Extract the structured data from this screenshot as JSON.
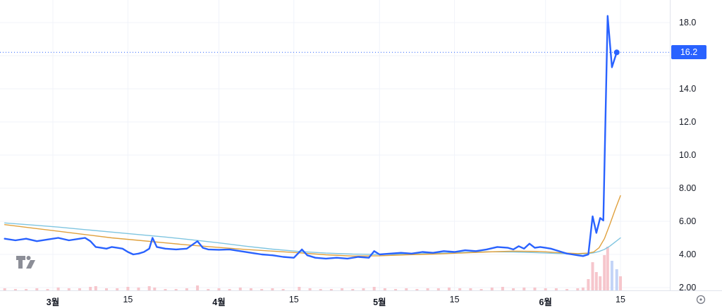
{
  "price_axis": {
    "last_price_label": "16.2"
  },
  "icons": {
    "tradingview_logo": "TV monogram watermark",
    "axis_settings": "circled-dot"
  },
  "chart_data": {
    "type": "line",
    "title": "",
    "xlabel": "",
    "ylabel": "",
    "ylim": [
      1.6,
      19.4
    ],
    "grid": {
      "on": true,
      "color": "#f0f3fa",
      "y_values": [
        18,
        16,
        14,
        12,
        10,
        8,
        6,
        4,
        2
      ]
    },
    "x_ticks": [
      {
        "label": "3월",
        "day": 9,
        "major": true
      },
      {
        "label": "15",
        "day": 23,
        "major": false
      },
      {
        "label": "4월",
        "day": 40,
        "major": true
      },
      {
        "label": "15",
        "day": 54,
        "major": false
      },
      {
        "label": "5월",
        "day": 70,
        "major": true
      },
      {
        "label": "15",
        "day": 84,
        "major": false
      },
      {
        "label": "6월",
        "day": 101,
        "major": true
      },
      {
        "label": "15",
        "day": 115,
        "major": false
      }
    ],
    "y_ticks": [
      {
        "label": "18.0",
        "value": 18
      },
      {
        "label": "14.0",
        "value": 14
      },
      {
        "label": "12.0",
        "value": 12
      },
      {
        "label": "10.0",
        "value": 10
      },
      {
        "label": "8.00",
        "value": 8
      },
      {
        "label": "6.00",
        "value": 6
      },
      {
        "label": "4.00",
        "value": 4
      },
      {
        "label": "2.00",
        "value": 2
      }
    ],
    "last_price": {
      "value": 16.2,
      "label": "16.2",
      "line_color": "#2962ff",
      "badge_color": "#2962ff"
    },
    "series": [
      {
        "name": "price",
        "color": "#2962ff",
        "width": 2.4,
        "points": [
          [
            0,
            4.95
          ],
          [
            2,
            4.85
          ],
          [
            4,
            4.95
          ],
          [
            6,
            4.8
          ],
          [
            8,
            4.9
          ],
          [
            10,
            5.0
          ],
          [
            12,
            4.85
          ],
          [
            14,
            4.95
          ],
          [
            15,
            5.0
          ],
          [
            16,
            4.8
          ],
          [
            17,
            4.45
          ],
          [
            18,
            4.4
          ],
          [
            19,
            4.35
          ],
          [
            20,
            4.45
          ],
          [
            21,
            4.4
          ],
          [
            22,
            4.35
          ],
          [
            23,
            4.15
          ],
          [
            24,
            4.0
          ],
          [
            25,
            4.05
          ],
          [
            26,
            4.15
          ],
          [
            27,
            4.35
          ],
          [
            27.6,
            5.0
          ],
          [
            28.4,
            4.45
          ],
          [
            30,
            4.35
          ],
          [
            32,
            4.3
          ],
          [
            34,
            4.35
          ],
          [
            36,
            4.8
          ],
          [
            37,
            4.4
          ],
          [
            38,
            4.3
          ],
          [
            40,
            4.28
          ],
          [
            42,
            4.3
          ],
          [
            44,
            4.2
          ],
          [
            46,
            4.1
          ],
          [
            48,
            4.0
          ],
          [
            50,
            3.95
          ],
          [
            52,
            3.85
          ],
          [
            54,
            3.8
          ],
          [
            55.5,
            4.3
          ],
          [
            56.5,
            3.95
          ],
          [
            58,
            3.8
          ],
          [
            60,
            3.75
          ],
          [
            62,
            3.8
          ],
          [
            64,
            3.75
          ],
          [
            66,
            3.85
          ],
          [
            68,
            3.8
          ],
          [
            69,
            4.2
          ],
          [
            70,
            4.0
          ],
          [
            72,
            4.05
          ],
          [
            74,
            4.1
          ],
          [
            76,
            4.05
          ],
          [
            78,
            4.15
          ],
          [
            80,
            4.1
          ],
          [
            82,
            4.2
          ],
          [
            84,
            4.15
          ],
          [
            86,
            4.25
          ],
          [
            88,
            4.2
          ],
          [
            90,
            4.3
          ],
          [
            92,
            4.45
          ],
          [
            94,
            4.4
          ],
          [
            95,
            4.3
          ],
          [
            96,
            4.5
          ],
          [
            97,
            4.35
          ],
          [
            98,
            4.65
          ],
          [
            99,
            4.4
          ],
          [
            100,
            4.45
          ],
          [
            101,
            4.4
          ],
          [
            102,
            4.35
          ],
          [
            103,
            4.25
          ],
          [
            104,
            4.15
          ],
          [
            105,
            4.05
          ],
          [
            106,
            4.0
          ],
          [
            107,
            3.95
          ],
          [
            108,
            3.9
          ],
          [
            109,
            4.0
          ],
          [
            109.8,
            6.3
          ],
          [
            110.5,
            5.3
          ],
          [
            111.2,
            6.2
          ],
          [
            111.8,
            6.05
          ],
          [
            112.6,
            18.4
          ],
          [
            113.4,
            15.3
          ],
          [
            114.3,
            16.2
          ]
        ]
      },
      {
        "name": "ma-fast",
        "color": "#e0a13e",
        "width": 1.4,
        "points": [
          [
            0,
            5.8
          ],
          [
            5,
            5.6
          ],
          [
            10,
            5.4
          ],
          [
            15,
            5.2
          ],
          [
            20,
            5.0
          ],
          [
            25,
            4.85
          ],
          [
            30,
            4.7
          ],
          [
            35,
            4.55
          ],
          [
            40,
            4.42
          ],
          [
            45,
            4.3
          ],
          [
            50,
            4.2
          ],
          [
            55,
            4.1
          ],
          [
            60,
            3.98
          ],
          [
            65,
            3.9
          ],
          [
            70,
            3.92
          ],
          [
            75,
            3.98
          ],
          [
            80,
            4.02
          ],
          [
            85,
            4.08
          ],
          [
            90,
            4.15
          ],
          [
            95,
            4.2
          ],
          [
            100,
            4.18
          ],
          [
            104,
            4.1
          ],
          [
            107,
            4.05
          ],
          [
            109,
            4.08
          ],
          [
            110,
            4.15
          ],
          [
            111,
            4.4
          ],
          [
            112,
            4.95
          ],
          [
            113,
            5.8
          ],
          [
            114,
            6.7
          ],
          [
            115,
            7.55
          ]
        ]
      },
      {
        "name": "ma-slow",
        "color": "#7fc5e0",
        "width": 1.4,
        "points": [
          [
            0,
            5.9
          ],
          [
            5,
            5.78
          ],
          [
            10,
            5.65
          ],
          [
            15,
            5.5
          ],
          [
            20,
            5.35
          ],
          [
            25,
            5.2
          ],
          [
            30,
            5.05
          ],
          [
            35,
            4.88
          ],
          [
            40,
            4.7
          ],
          [
            45,
            4.5
          ],
          [
            50,
            4.32
          ],
          [
            55,
            4.18
          ],
          [
            60,
            4.08
          ],
          [
            65,
            4.02
          ],
          [
            70,
            4.0
          ],
          [
            75,
            4.02
          ],
          [
            80,
            4.06
          ],
          [
            85,
            4.12
          ],
          [
            90,
            4.16
          ],
          [
            95,
            4.15
          ],
          [
            100,
            4.1
          ],
          [
            104,
            4.05
          ],
          [
            107,
            4.02
          ],
          [
            109,
            4.05
          ],
          [
            110,
            4.1
          ],
          [
            111,
            4.18
          ],
          [
            112,
            4.3
          ],
          [
            113,
            4.5
          ],
          [
            114,
            4.75
          ],
          [
            115,
            5.0
          ]
        ]
      }
    ],
    "volume": {
      "colors": {
        "down": "#f6c6cc",
        "up": "#c3d4f7"
      },
      "bars": [
        [
          0,
          3,
          "d"
        ],
        [
          2,
          2,
          "d"
        ],
        [
          4,
          2,
          "d"
        ],
        [
          6,
          3,
          "d"
        ],
        [
          8,
          2,
          "d"
        ],
        [
          10,
          4,
          "d"
        ],
        [
          12,
          3,
          "d"
        ],
        [
          14,
          3,
          "d"
        ],
        [
          16,
          5,
          "d"
        ],
        [
          17,
          6,
          "d"
        ],
        [
          19,
          3,
          "d"
        ],
        [
          21,
          3,
          "d"
        ],
        [
          23,
          5,
          "d"
        ],
        [
          25,
          4,
          "d"
        ],
        [
          27,
          6,
          "d"
        ],
        [
          28,
          4,
          "d"
        ],
        [
          30,
          2,
          "d"
        ],
        [
          32,
          2,
          "d"
        ],
        [
          34,
          3,
          "d"
        ],
        [
          36,
          7,
          "d"
        ],
        [
          38,
          2,
          "d"
        ],
        [
          40,
          3,
          "d"
        ],
        [
          42,
          2,
          "d"
        ],
        [
          44,
          4,
          "d"
        ],
        [
          46,
          3,
          "d"
        ],
        [
          48,
          2,
          "d"
        ],
        [
          50,
          3,
          "d"
        ],
        [
          52,
          2,
          "d"
        ],
        [
          55,
          5,
          "d"
        ],
        [
          57,
          3,
          "d"
        ],
        [
          59,
          2,
          "d"
        ],
        [
          61,
          2,
          "d"
        ],
        [
          63,
          3,
          "d"
        ],
        [
          65,
          2,
          "d"
        ],
        [
          67,
          3,
          "d"
        ],
        [
          69,
          5,
          "d"
        ],
        [
          71,
          3,
          "d"
        ],
        [
          73,
          2,
          "d"
        ],
        [
          75,
          3,
          "d"
        ],
        [
          77,
          2,
          "d"
        ],
        [
          79,
          3,
          "d"
        ],
        [
          81,
          3,
          "d"
        ],
        [
          83,
          4,
          "d"
        ],
        [
          85,
          3,
          "d"
        ],
        [
          87,
          3,
          "d"
        ],
        [
          89,
          2,
          "d"
        ],
        [
          91,
          4,
          "d"
        ],
        [
          93,
          5,
          "d"
        ],
        [
          95,
          3,
          "d"
        ],
        [
          97,
          4,
          "d"
        ],
        [
          99,
          4,
          "d"
        ],
        [
          101,
          3,
          "d"
        ],
        [
          103,
          3,
          "d"
        ],
        [
          105,
          2,
          "d"
        ],
        [
          107,
          3,
          "d"
        ],
        [
          108,
          4,
          "d"
        ],
        [
          109,
          16,
          "d"
        ],
        [
          109.8,
          40,
          "d"
        ],
        [
          110.5,
          26,
          "d"
        ],
        [
          111.2,
          20,
          "d"
        ],
        [
          112,
          50,
          "d"
        ],
        [
          112.6,
          62,
          "d"
        ],
        [
          113.4,
          42,
          "u"
        ],
        [
          114.3,
          30,
          "u"
        ],
        [
          115,
          20,
          "d"
        ]
      ]
    }
  }
}
